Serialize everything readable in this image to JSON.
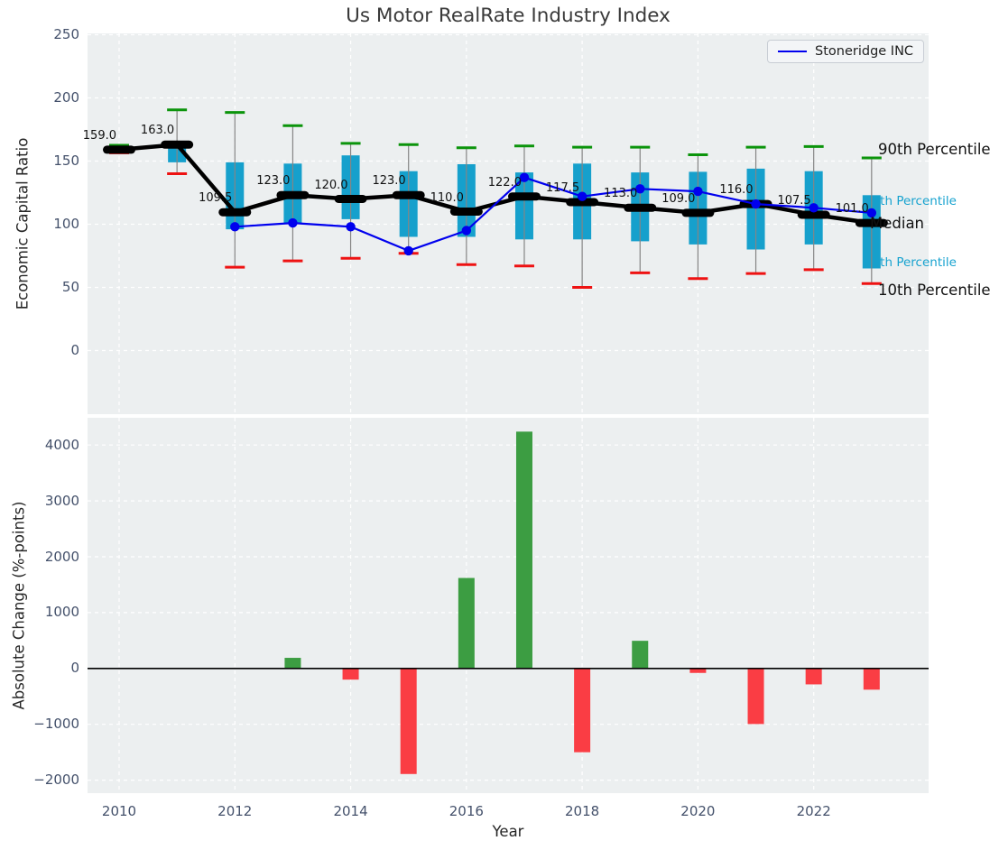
{
  "chart_data": [
    {
      "type": "box",
      "title": "Us Motor RealRate Industry Index",
      "ylabel": "Economic Capital Ratio",
      "yticks": [
        0,
        50,
        100,
        150,
        200,
        250
      ],
      "ylim": [
        -49,
        252
      ],
      "xlim": [
        2009.5,
        2024.05
      ],
      "xticks": [
        2010,
        2012,
        2014,
        2016,
        2018,
        2020,
        2022
      ],
      "grid": true,
      "legend": {
        "entries": [
          "Stoneridge INC"
        ],
        "position": "upper right"
      },
      "years": [
        2010,
        2011,
        2012,
        2013,
        2014,
        2015,
        2016,
        2017,
        2018,
        2019,
        2020,
        2021,
        2022,
        2023
      ],
      "median_labels": [
        "159.0",
        "163.0",
        "109.5",
        "123.0",
        "120.0",
        "123.0",
        "110.0",
        "122.0",
        "117.5",
        "113.0",
        "109.0",
        "116.0",
        "107.5",
        "101.0"
      ],
      "boxes": [
        {
          "year": 2010,
          "median": 159.0,
          "q1": 156.5,
          "q3": 160.5,
          "p10": 156.5,
          "p90": 162.5
        },
        {
          "year": 2011,
          "median": 163.0,
          "q1": 149.0,
          "q3": 163.0,
          "p10": 140.0,
          "p90": 190.5
        },
        {
          "year": 2012,
          "median": 109.5,
          "q1": 96.0,
          "q3": 149.0,
          "p10": 66.0,
          "p90": 188.5
        },
        {
          "year": 2013,
          "median": 123.0,
          "q1": 100.0,
          "q3": 148.0,
          "p10": 71.0,
          "p90": 178.0
        },
        {
          "year": 2014,
          "median": 120.0,
          "q1": 104.0,
          "q3": 154.5,
          "p10": 73.0,
          "p90": 164.0
        },
        {
          "year": 2015,
          "median": 123.0,
          "q1": 90.0,
          "q3": 142.0,
          "p10": 77.0,
          "p90": 163.0
        },
        {
          "year": 2016,
          "median": 110.0,
          "q1": 90.0,
          "q3": 147.5,
          "p10": 68.0,
          "p90": 160.5
        },
        {
          "year": 2017,
          "median": 122.0,
          "q1": 88.0,
          "q3": 141.0,
          "p10": 67.0,
          "p90": 162.0
        },
        {
          "year": 2018,
          "median": 117.5,
          "q1": 88.0,
          "q3": 148.0,
          "p10": 50.0,
          "p90": 161.0
        },
        {
          "year": 2019,
          "median": 113.0,
          "q1": 86.5,
          "q3": 141.0,
          "p10": 61.5,
          "p90": 161.0
        },
        {
          "year": 2020,
          "median": 109.0,
          "q1": 84.0,
          "q3": 141.5,
          "p10": 57.0,
          "p90": 155.0
        },
        {
          "year": 2021,
          "median": 116.0,
          "q1": 80.0,
          "q3": 144.0,
          "p10": 61.0,
          "p90": 161.0
        },
        {
          "year": 2022,
          "median": 107.5,
          "q1": 84.0,
          "q3": 142.0,
          "p10": 64.0,
          "p90": 161.5
        },
        {
          "year": 2023,
          "median": 101.0,
          "q1": 65.0,
          "q3": 123.0,
          "p10": 53.0,
          "p90": 152.5
        }
      ],
      "series": [
        {
          "name": "Stoneridge INC",
          "x": [
            2012,
            2013,
            2014,
            2015,
            2016,
            2017,
            2018,
            2019,
            2020,
            2021,
            2022,
            2023
          ],
          "y": [
            98,
            101,
            98,
            79,
            95,
            137,
            122,
            128,
            126,
            116,
            113,
            109
          ]
        }
      ],
      "annotations": [
        {
          "text": "90th Percentile",
          "color": "black"
        },
        {
          "text": "75th Percentile",
          "color": "cyan"
        },
        {
          "text": "Median",
          "color": "black"
        },
        {
          "text": "25th Percentile",
          "color": "cyan"
        },
        {
          "text": "10th Percentile",
          "color": "black"
        }
      ]
    },
    {
      "type": "bar",
      "ylabel": "Absolute Change (%-points)",
      "xlabel": "Year",
      "yticks": [
        -2000,
        -1000,
        0,
        1000,
        2000,
        3000,
        4000
      ],
      "ylim": [
        -2220,
        4520
      ],
      "grid": true,
      "categories": [
        2010,
        2011,
        2012,
        2013,
        2014,
        2015,
        2016,
        2017,
        2018,
        2019,
        2020,
        2021,
        2022,
        2023
      ],
      "values": [
        null,
        null,
        null,
        190,
        -200,
        -1890,
        1620,
        4240,
        -1500,
        495,
        -80,
        -995,
        -285,
        -380
      ]
    }
  ],
  "colors": {
    "plot_bg": "#eceff0",
    "grid": "#ffffff",
    "box_fill": "#16a0cc",
    "whisker": "#858585",
    "cap_high": "#0b940b",
    "cap_low": "#ee1212",
    "median_marker": "#000000",
    "median_line": "#000000",
    "stoneridge_line": "#0000ee",
    "positive_bar": "#3c9d42",
    "negative_bar": "#fa3d44",
    "zero_line": "#000000",
    "tick_label": "#44516b",
    "cyan_label": "#16a2cf",
    "title": "#3a3a3a"
  }
}
